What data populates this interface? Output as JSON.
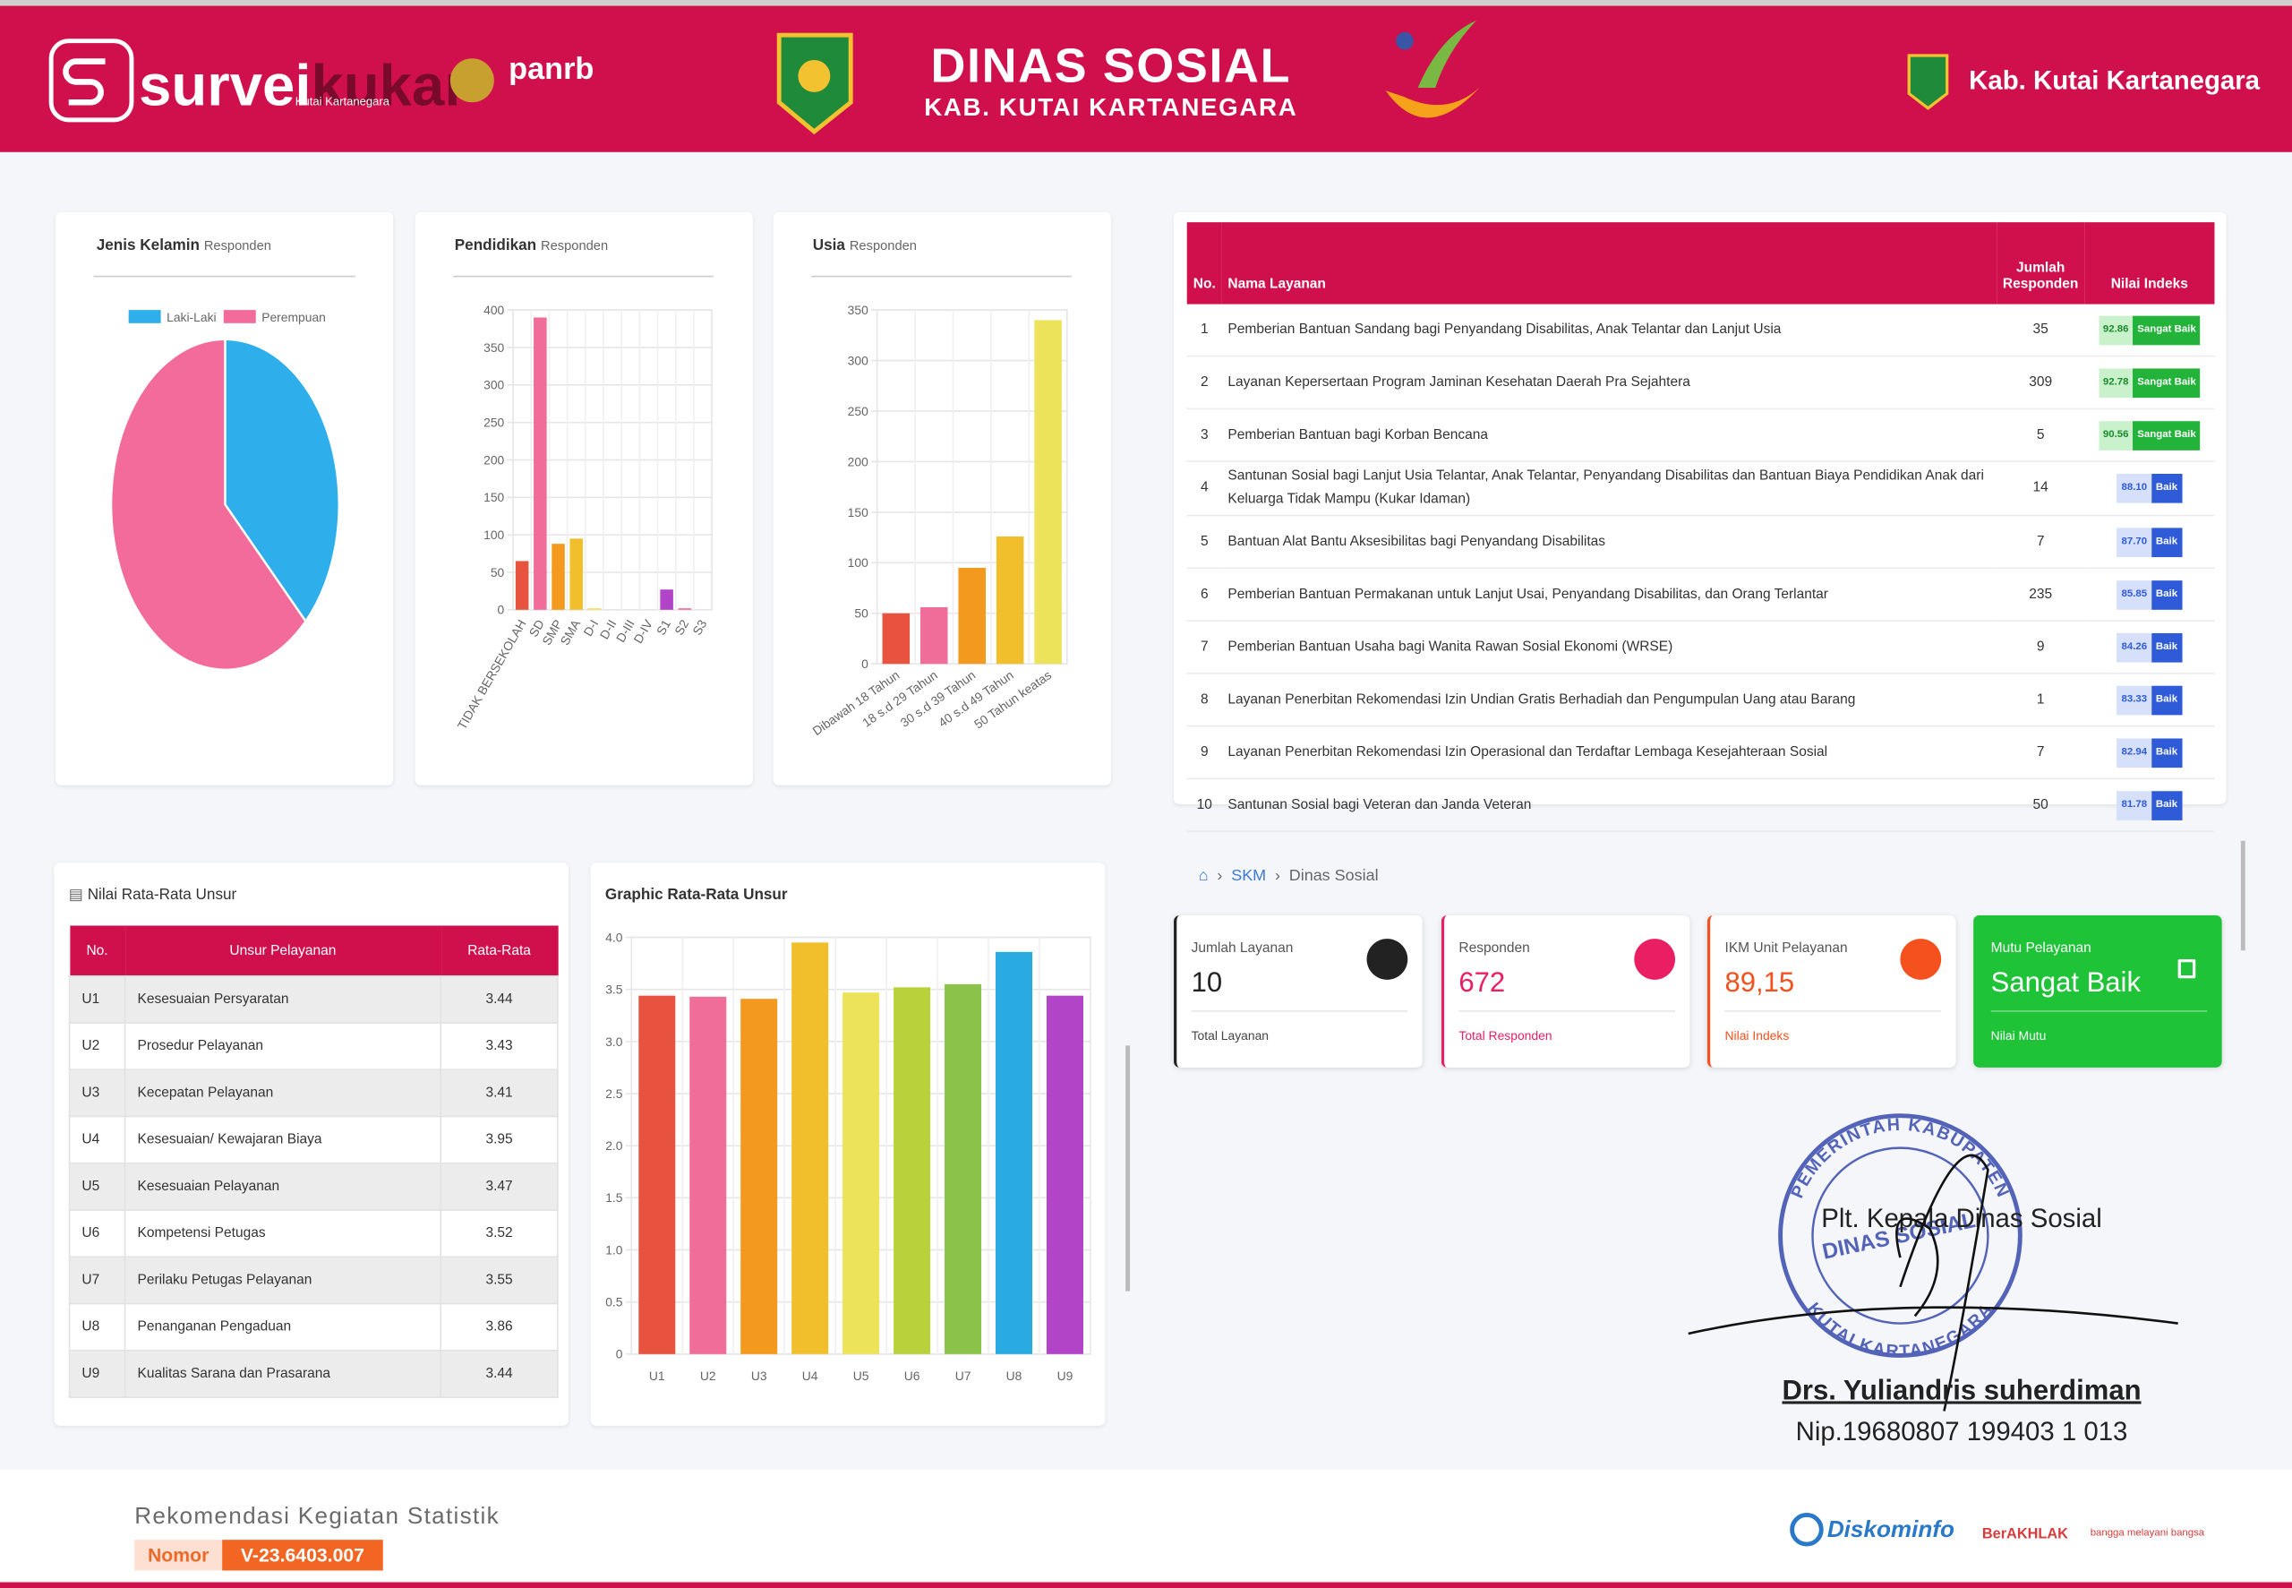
{
  "header": {
    "brand": "survei",
    "brand_accent": "kukar",
    "brand_sub": "Kutai Kartanegara",
    "partner": "panrb",
    "title": "DINAS SOSIAL",
    "subtitle": "KAB. KUTAI KARTANEGARA",
    "region": "Kab. Kutai Kartanegara"
  },
  "chart_data": [
    {
      "type": "pie",
      "title": "Jenis Kelamin",
      "subtitle": "Responden",
      "categories": [
        "Laki-Laki",
        "Perempuan"
      ],
      "values": [
        252,
        420
      ],
      "colors": [
        "#2eaeea",
        "#f26b9b"
      ]
    },
    {
      "type": "bar",
      "title": "Pendidikan",
      "subtitle": "Responden",
      "categories": [
        "TIDAK BERSEKOLAH",
        "SD",
        "SMP",
        "SMA",
        "D-I",
        "D-II",
        "D-III",
        "D-IV",
        "S1",
        "S2",
        "S3"
      ],
      "values": [
        65,
        390,
        88,
        95,
        2,
        0,
        0,
        0,
        27,
        2,
        0
      ],
      "colors": [
        "#e8533f",
        "#f06d99",
        "#f39a1e",
        "#f1bf2c",
        "#ede35a",
        "#b9d13a",
        "#8bc34a",
        "#29abe2",
        "#b244c8",
        "#f06d99",
        "#e8533f"
      ],
      "ylim": [
        0,
        400
      ],
      "yticks": [
        0,
        50,
        100,
        150,
        200,
        250,
        300,
        350,
        400
      ],
      "grid": true
    },
    {
      "type": "bar",
      "title": "Usia",
      "subtitle": "Responden",
      "categories": [
        "Dibawah 18 Tahun",
        "18 s.d 29 Tahun",
        "30 s.d 39 Tahun",
        "40 s.d 49 Tahun",
        "50 Tahun keatas"
      ],
      "values": [
        50,
        56,
        95,
        126,
        340
      ],
      "colors": [
        "#e8533f",
        "#f06d99",
        "#f39a1e",
        "#f1bf2c",
        "#ede35a"
      ],
      "ylim": [
        0,
        350
      ],
      "yticks": [
        0,
        50,
        100,
        150,
        200,
        250,
        300,
        350
      ],
      "grid": true
    },
    {
      "type": "bar",
      "title": "Graphic Rata-Rata Unsur",
      "categories": [
        "U1",
        "U2",
        "U3",
        "U4",
        "U5",
        "U6",
        "U7",
        "U8",
        "U9"
      ],
      "values": [
        3.44,
        3.43,
        3.41,
        3.95,
        3.47,
        3.52,
        3.55,
        3.86,
        3.44
      ],
      "colors": [
        "#e8533f",
        "#f06d99",
        "#f39a1e",
        "#f1bf2c",
        "#ede35a",
        "#b9d13a",
        "#8bc34a",
        "#29abe2",
        "#b244c8"
      ],
      "ylim": [
        0,
        4
      ],
      "yticks": [
        0,
        0.5,
        {
          "value": 1,
          "label": "1.0"
        },
        1.5,
        {
          "value": 2,
          "label": "2.0"
        },
        2.5,
        {
          "value": 3,
          "label": "3.0"
        },
        3.5,
        {
          "value": 4,
          "label": "4.0"
        }
      ],
      "grid": true
    }
  ],
  "services_table": {
    "headers": [
      "No.",
      "Nama Layanan",
      "Jumlah Responden",
      "Nilai Indeks"
    ],
    "rows": [
      {
        "no": 1,
        "name": "Pemberian Bantuan Sandang bagi Penyandang Disabilitas, Anak Telantar dan Lanjut Usia",
        "responden": 35,
        "index": "92.86",
        "grade": "Sangat Baik"
      },
      {
        "no": 2,
        "name": "Layanan Kepersertaan Program Jaminan Kesehatan Daerah Pra Sejahtera",
        "responden": 309,
        "index": "92.78",
        "grade": "Sangat Baik"
      },
      {
        "no": 3,
        "name": "Pemberian Bantuan bagi Korban Bencana",
        "responden": 5,
        "index": "90.56",
        "grade": "Sangat Baik"
      },
      {
        "no": 4,
        "name": "Santunan Sosial bagi Lanjut Usia Telantar, Anak Telantar, Penyandang Disabilitas dan Bantuan Biaya Pendidikan Anak dari Keluarga Tidak Mampu (Kukar Idaman)",
        "responden": 14,
        "index": "88.10",
        "grade": "Baik"
      },
      {
        "no": 5,
        "name": "Bantuan Alat Bantu Aksesibilitas bagi Penyandang Disabilitas",
        "responden": 7,
        "index": "87.70",
        "grade": "Baik"
      },
      {
        "no": 6,
        "name": "Pemberian Bantuan Permakanan untuk Lanjut Usai, Penyandang Disabilitas, dan Orang Terlantar",
        "responden": 235,
        "index": "85.85",
        "grade": "Baik"
      },
      {
        "no": 7,
        "name": "Pemberian Bantuan Usaha bagi Wanita Rawan Sosial Ekonomi (WRSE)",
        "responden": 9,
        "index": "84.26",
        "grade": "Baik"
      },
      {
        "no": 8,
        "name": "Layanan Penerbitan Rekomendasi Izin Undian Gratis Berhadiah dan Pengumpulan Uang atau Barang",
        "responden": 1,
        "index": "83.33",
        "grade": "Baik"
      },
      {
        "no": 9,
        "name": "Layanan Penerbitan Rekomendasi Izin Operasional dan Terdaftar Lembaga Kesejahteraan Sosial",
        "responden": 7,
        "index": "82.94",
        "grade": "Baik"
      },
      {
        "no": 10,
        "name": "Santunan Sosial bagi Veteran dan Janda Veteran",
        "responden": 50,
        "index": "81.78",
        "grade": "Baik"
      }
    ]
  },
  "unsur_table": {
    "title": "Nilai Rata-Rata Unsur",
    "headers": [
      "No.",
      "Unsur Pelayanan",
      "Rata-Rata"
    ],
    "rows": [
      {
        "code": "U1",
        "name": "Kesesuaian Persyaratan",
        "value": 3.44
      },
      {
        "code": "U2",
        "name": "Prosedur Pelayanan",
        "value": 3.43
      },
      {
        "code": "U3",
        "name": "Kecepatan Pelayanan",
        "value": 3.41
      },
      {
        "code": "U4",
        "name": "Kesesuaian/ Kewajaran Biaya",
        "value": 3.95
      },
      {
        "code": "U5",
        "name": "Kesesuaian Pelayanan",
        "value": 3.47
      },
      {
        "code": "U6",
        "name": "Kompetensi Petugas",
        "value": 3.52
      },
      {
        "code": "U7",
        "name": "Perilaku Petugas Pelayanan",
        "value": 3.55
      },
      {
        "code": "U8",
        "name": "Penanganan Pengaduan",
        "value": 3.86
      },
      {
        "code": "U9",
        "name": "Kualitas Sarana dan Prasarana",
        "value": 3.44
      }
    ]
  },
  "breadcrumb": [
    "SKM",
    "Dinas Sosial"
  ],
  "cards": [
    {
      "label": "Jumlah Layanan",
      "value": 10,
      "footer": "Total Layanan"
    },
    {
      "label": "Responden",
      "value": 672,
      "footer": "Total Responden"
    },
    {
      "label": "IKM Unit Pelayanan",
      "value": "89,15",
      "footer": "Nilai Indeks"
    },
    {
      "label": "Mutu Pelayanan",
      "value": "Sangat Baik",
      "footer": "Nilai Mutu"
    }
  ],
  "signature": {
    "stamp": [
      "PEMERINTAH KABUPATEN",
      "DINAS SOSIAL",
      "KUTAI KARTANEGARA"
    ],
    "position": "Plt. Kepala Dinas Sosial",
    "name": "Drs. Yuliandris suherdiman",
    "nip": "Nip.19680807 199403 1 013"
  },
  "footer": {
    "label": "Rekomendasi Kegiatan Statistik",
    "nomor_label": "Nomor",
    "nomor": "V-23.6403.007",
    "logos": [
      "Diskominfo",
      "BerAKHLAK",
      "bangga melayani bangsa"
    ]
  }
}
